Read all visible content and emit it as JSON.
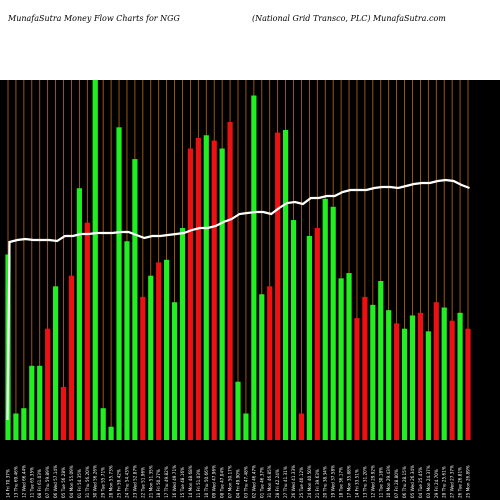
{
  "header": {
    "title_left": "MunafaSutra  Money Flow  Charts for NGG",
    "title_right": "(National Grid Transco, PLC) MunafaSutra.com"
  },
  "colors": {
    "background": "#000000",
    "up": "#22ee22",
    "down": "#ee1111",
    "price_line": "#ffffff",
    "vgrid": "#c06a10"
  },
  "chart_data": {
    "type": "bar",
    "title": "MunafaSutra  Money Flow  Charts for NGG",
    "subtitle": "(National Grid Transco, PLC) MunafaSutra.com",
    "xlabel": "",
    "ylabel": "",
    "grid": true,
    "categories": [
      "14 Fri 70.37%",
      "13 Thu 69.46%",
      "12 Wed 66.44%",
      "11 Tue 65.35%",
      "08 Fri 61.03%",
      "07 Thu 59.89%",
      "06 Wed 57.14%",
      "05 Tue 56.28%",
      "04 Mon 55.09%",
      "01 Fri 54.35%",
      "31 Thu 56.20%",
      "30 Wed 56.26%",
      "29 Tue 55.71%",
      "28 Mon 55.73%",
      "25 Fri 59.42%",
      "24 Thu 54.43%",
      "23 Wed 52.87%",
      "22 Tue 51.96%",
      "21 Mon 51.35%",
      "18 Fri 50.27%",
      "17 Thu 49.82%",
      "16 Wed 49.71%",
      "15 Tue 48.16%",
      "14 Mon 48.68%",
      "11 Fri 51.03%",
      "10 Thu 50.66%",
      "09 Wed 47.96%",
      "08 Tue 47.04%",
      "07 Mon 50.17%",
      "04 Fri 49.90%",
      "03 Thu 47.48%",
      "02 Wed 46.47%",
      "01 Tue 46.37%",
      "31 Mon 46.85%",
      "28 Fri 42.24%",
      "27 Thu 41.31%",
      "26 Wed 41.33%",
      "25 Tue 40.12%",
      "24 Mon 40.50%",
      "21 Fri 39.63%",
      "20 Thu 38.34%",
      "19 Wed 37.58%",
      "18 Tue 36.17%",
      "17 Mon 35.88%",
      "14 Fri 33.51%",
      "13 Thu 31.20%",
      "12 Wed 29.92%",
      "11 Tue 30.18%",
      "10 Mon 29.43%",
      "07 Fri 28.80%",
      "06 Thu 28.15%",
      "05 Wed 26.34%",
      "04 Tue 25.45%",
      "03 Mon 24.37%",
      "29 Fri 24.70%",
      "28 Thu 25.61%",
      "27 Wed 27.37%",
      "26 Tue 26.81%",
      "25 Mon 26.89%"
    ],
    "series": [
      {
        "values": [
          70,
          10,
          12,
          28,
          28,
          42,
          58,
          20,
          62,
          95,
          82,
          137,
          12,
          5,
          118,
          75,
          106,
          54,
          62,
          67,
          68,
          52,
          80,
          110,
          114,
          115,
          113,
          110,
          120,
          22,
          10,
          130,
          55,
          58,
          116,
          117,
          83,
          10,
          77,
          80,
          91,
          88,
          61,
          63,
          46,
          54,
          51,
          60,
          49,
          44,
          42,
          47,
          48,
          41,
          52,
          50,
          45,
          48,
          42
        ],
        "colors": [
          "up",
          "up",
          "up",
          "up",
          "up",
          "down",
          "up",
          "down",
          "down",
          "up",
          "down",
          "up",
          "up",
          "up",
          "up",
          "up",
          "up",
          "down",
          "up",
          "down",
          "up",
          "up",
          "up",
          "down",
          "down",
          "up",
          "down",
          "up",
          "down",
          "up",
          "up",
          "up",
          "up",
          "down",
          "down",
          "up",
          "up",
          "down",
          "up",
          "down",
          "up",
          "up",
          "up",
          "up",
          "down",
          "down",
          "up",
          "up",
          "up",
          "down",
          "up",
          "up",
          "down",
          "up",
          "down",
          "up",
          "down",
          "up",
          "down"
        ]
      }
    ],
    "price_line": [
      242,
      240,
      239,
      240,
      240,
      240,
      241,
      236,
      236,
      234,
      234,
      233,
      233,
      233,
      232,
      232,
      235,
      238,
      236,
      236,
      235,
      234,
      233,
      230,
      228,
      228,
      226,
      222,
      219,
      214,
      213,
      212,
      212,
      214,
      208,
      203,
      202,
      204,
      198,
      198,
      196,
      196,
      192,
      190,
      190,
      190,
      188,
      187,
      187,
      188,
      186,
      184,
      183,
      183,
      181,
      180,
      181,
      185,
      188
    ]
  }
}
